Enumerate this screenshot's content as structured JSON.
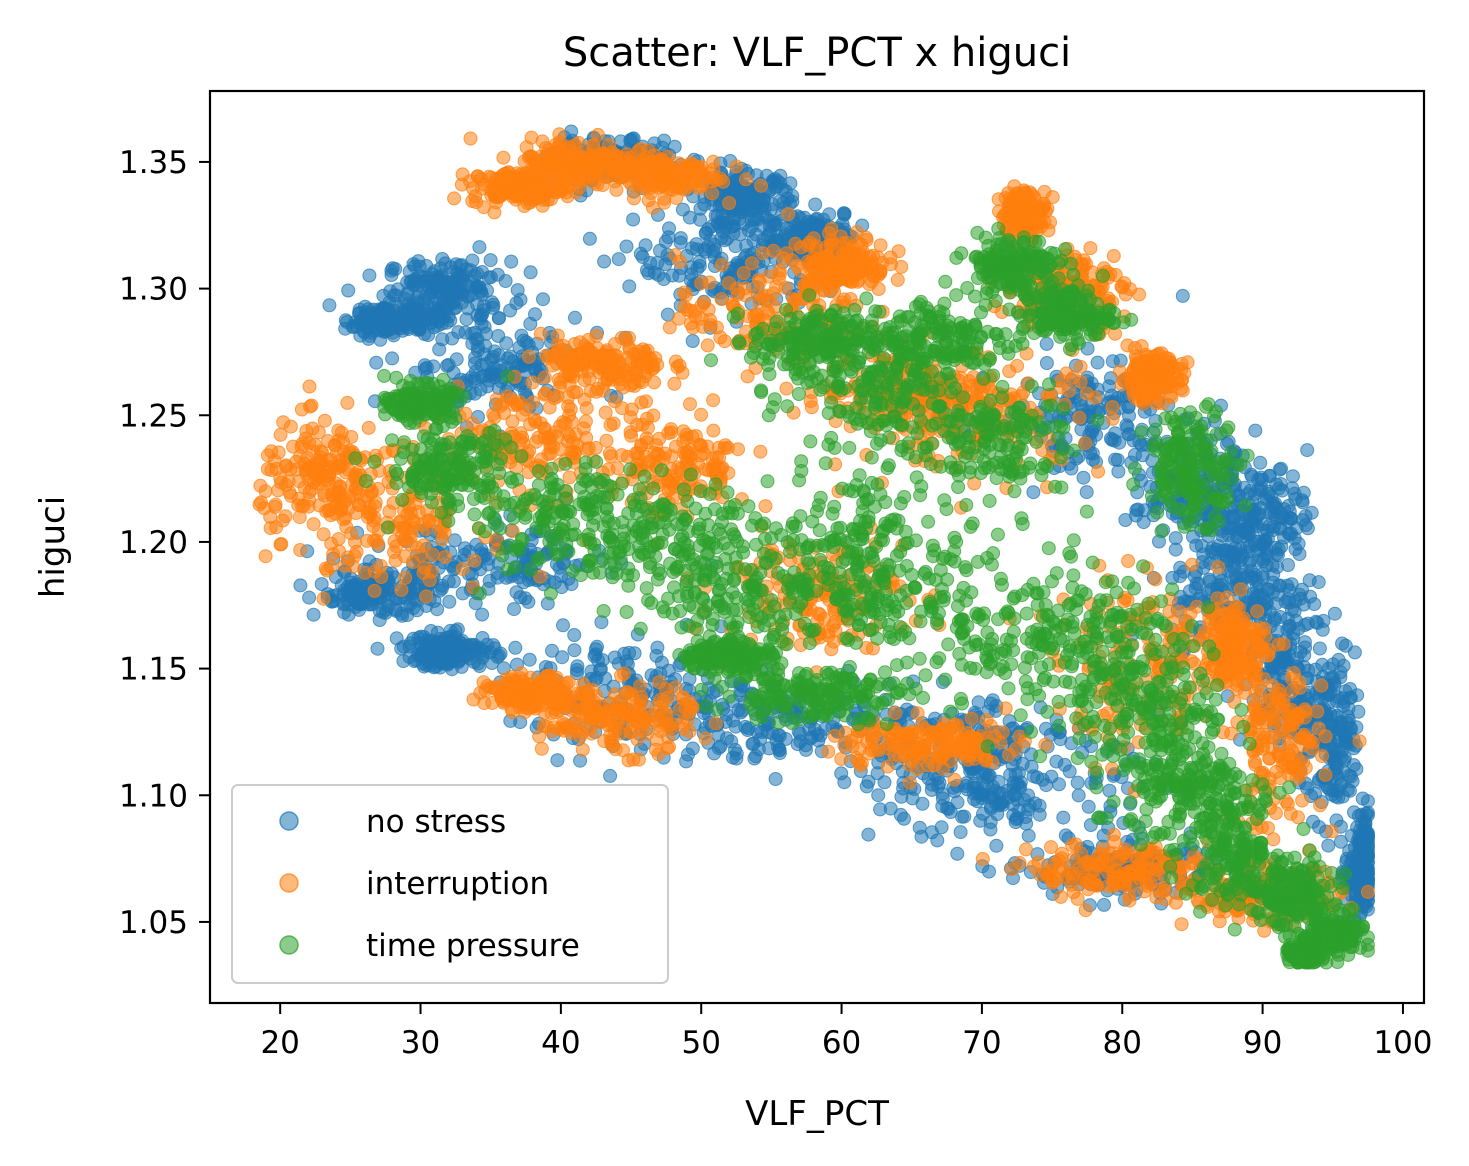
{
  "chart_data": {
    "type": "scatter",
    "title": "Scatter: VLF_PCT x higuci",
    "xlabel": "VLF_PCT",
    "ylabel": "higuci",
    "xlim": [
      15,
      101.5
    ],
    "ylim": [
      1.018,
      1.378
    ],
    "xticks": [
      20,
      30,
      40,
      50,
      60,
      70,
      80,
      90,
      100
    ],
    "xtick_labels": [
      "20",
      "30",
      "40",
      "50",
      "60",
      "70",
      "80",
      "90",
      "100"
    ],
    "yticks": [
      1.05,
      1.1,
      1.15,
      1.2,
      1.25,
      1.3,
      1.35
    ],
    "ytick_labels": [
      "1.05",
      "1.10",
      "1.15",
      "1.20",
      "1.25",
      "1.30",
      "1.35"
    ],
    "grid": false,
    "legend_position": "lower-left",
    "series": [
      {
        "name": "no stress",
        "color": "#1f77b4",
        "approx_regions": [
          {
            "center": [
              32,
              1.3
            ],
            "spread": [
              4,
              0.01
            ]
          },
          {
            "center": [
              28,
              1.288
            ],
            "spread": [
              3,
              0.006
            ]
          },
          {
            "center": [
              35,
              1.27
            ],
            "spread": [
              6,
              0.02
            ]
          },
          {
            "center": [
              44,
              1.35
            ],
            "spread": [
              4,
              0.008
            ]
          },
          {
            "center": [
              53,
              1.335
            ],
            "spread": [
              3,
              0.01
            ]
          },
          {
            "center": [
              58,
              1.32
            ],
            "spread": [
              3,
              0.01
            ]
          },
          {
            "center": [
              52,
              1.31
            ],
            "spread": [
              6,
              0.02
            ]
          },
          {
            "center": [
              27,
              1.18
            ],
            "spread": [
              4,
              0.008
            ]
          },
          {
            "center": [
              35,
              1.19
            ],
            "spread": [
              8,
              0.015
            ]
          },
          {
            "center": [
              32,
              1.157
            ],
            "spread": [
              3,
              0.006
            ]
          },
          {
            "center": [
              45,
              1.14
            ],
            "spread": [
              8,
              0.02
            ]
          },
          {
            "center": [
              55,
              1.13
            ],
            "spread": [
              8,
              0.015
            ]
          },
          {
            "center": [
              68,
              1.12
            ],
            "spread": [
              8,
              0.02
            ]
          },
          {
            "center": [
              72,
              1.1
            ],
            "spread": [
              8,
              0.02
            ]
          },
          {
            "center": [
              80,
              1.07
            ],
            "spread": [
              6,
              0.01
            ]
          },
          {
            "center": [
              78,
              1.25
            ],
            "spread": [
              6,
              0.02
            ]
          },
          {
            "center": [
              85,
              1.22
            ],
            "spread": [
              4,
              0.02
            ]
          },
          {
            "center": [
              90,
              1.21
            ],
            "spread": [
              3,
              0.02
            ]
          },
          {
            "center": [
              92,
              1.15
            ],
            "spread": [
              3,
              0.03
            ]
          },
          {
            "center": [
              95,
              1.12
            ],
            "spread": [
              2,
              0.03
            ]
          },
          {
            "center": [
              97,
              1.07
            ],
            "spread": [
              1,
              0.02
            ]
          },
          {
            "center": [
              88,
              1.18
            ],
            "spread": [
              4,
              0.02
            ]
          }
        ]
      },
      {
        "name": "interruption",
        "color": "#ff7f0e",
        "approx_regions": [
          {
            "center": [
              41,
              1.35
            ],
            "spread": [
              4,
              0.008
            ]
          },
          {
            "center": [
              37,
              1.34
            ],
            "spread": [
              3,
              0.006
            ]
          },
          {
            "center": [
              47,
              1.345
            ],
            "spread": [
              4,
              0.008
            ]
          },
          {
            "center": [
              55,
              1.29
            ],
            "spread": [
              6,
              0.02
            ]
          },
          {
            "center": [
              60,
              1.31
            ],
            "spread": [
              3,
              0.01
            ]
          },
          {
            "center": [
              43,
              1.27
            ],
            "spread": [
              4,
              0.01
            ]
          },
          {
            "center": [
              23,
              1.225
            ],
            "spread": [
              4,
              0.02
            ]
          },
          {
            "center": [
              28,
              1.21
            ],
            "spread": [
              6,
              0.025
            ]
          },
          {
            "center": [
              38,
              1.24
            ],
            "spread": [
              6,
              0.02
            ]
          },
          {
            "center": [
              48,
              1.23
            ],
            "spread": [
              5,
              0.02
            ]
          },
          {
            "center": [
              44,
              1.13
            ],
            "spread": [
              5,
              0.012
            ]
          },
          {
            "center": [
              38,
              1.14
            ],
            "spread": [
              3,
              0.006
            ]
          },
          {
            "center": [
              73,
              1.33
            ],
            "spread": [
              1.5,
              0.008
            ]
          },
          {
            "center": [
              76,
              1.3
            ],
            "spread": [
              4,
              0.015
            ]
          },
          {
            "center": [
              82,
              1.265
            ],
            "spread": [
              2,
              0.008
            ]
          },
          {
            "center": [
              70,
              1.25
            ],
            "spread": [
              8,
              0.02
            ]
          },
          {
            "center": [
              65,
              1.26
            ],
            "spread": [
              6,
              0.015
            ]
          },
          {
            "center": [
              80,
              1.07
            ],
            "spread": [
              6,
              0.01
            ]
          },
          {
            "center": [
              90,
              1.06
            ],
            "spread": [
              5,
              0.01
            ]
          },
          {
            "center": [
              91,
              1.12
            ],
            "spread": [
              3,
              0.03
            ]
          },
          {
            "center": [
              88,
              1.16
            ],
            "spread": [
              2,
              0.015
            ]
          },
          {
            "center": [
              82,
              1.15
            ],
            "spread": [
              6,
              0.03
            ]
          },
          {
            "center": [
              58,
              1.18
            ],
            "spread": [
              6,
              0.02
            ]
          },
          {
            "center": [
              66,
              1.12
            ],
            "spread": [
              6,
              0.01
            ]
          }
        ]
      },
      {
        "name": "time pressure",
        "color": "#2ca02c",
        "approx_regions": [
          {
            "center": [
              30,
              1.255
            ],
            "spread": [
              2,
              0.006
            ]
          },
          {
            "center": [
              32,
              1.23
            ],
            "spread": [
              4,
              0.015
            ]
          },
          {
            "center": [
              40,
              1.21
            ],
            "spread": [
              8,
              0.02
            ]
          },
          {
            "center": [
              48,
              1.2
            ],
            "spread": [
              6,
              0.02
            ]
          },
          {
            "center": [
              55,
              1.18
            ],
            "spread": [
              8,
              0.02
            ]
          },
          {
            "center": [
              62,
              1.2
            ],
            "spread": [
              6,
              0.03
            ]
          },
          {
            "center": [
              62,
              1.26
            ],
            "spread": [
              6,
              0.02
            ]
          },
          {
            "center": [
              58,
              1.28
            ],
            "spread": [
              4,
              0.01
            ]
          },
          {
            "center": [
              67,
              1.28
            ],
            "spread": [
              5,
              0.015
            ]
          },
          {
            "center": [
              72,
              1.31
            ],
            "spread": [
              3,
              0.01
            ]
          },
          {
            "center": [
              76,
              1.29
            ],
            "spread": [
              3,
              0.01
            ]
          },
          {
            "center": [
              70,
              1.24
            ],
            "spread": [
              6,
              0.02
            ]
          },
          {
            "center": [
              70,
              1.17
            ],
            "spread": [
              8,
              0.03
            ]
          },
          {
            "center": [
              78,
              1.16
            ],
            "spread": [
              6,
              0.03
            ]
          },
          {
            "center": [
              82,
              1.13
            ],
            "spread": [
              5,
              0.03
            ]
          },
          {
            "center": [
              85,
              1.1
            ],
            "spread": [
              4,
              0.02
            ]
          },
          {
            "center": [
              88,
              1.08
            ],
            "spread": [
              3,
              0.02
            ]
          },
          {
            "center": [
              92,
              1.06
            ],
            "spread": [
              3,
              0.012
            ]
          },
          {
            "center": [
              95,
              1.045
            ],
            "spread": [
              2,
              0.008
            ]
          },
          {
            "center": [
              93,
              1.037
            ],
            "spread": [
              1,
              0.003
            ]
          },
          {
            "center": [
              85,
              1.23
            ],
            "spread": [
              3,
              0.02
            ]
          },
          {
            "center": [
              52,
              1.155
            ],
            "spread": [
              3,
              0.006
            ]
          },
          {
            "center": [
              58,
              1.14
            ],
            "spread": [
              6,
              0.01
            ]
          }
        ]
      }
    ]
  }
}
